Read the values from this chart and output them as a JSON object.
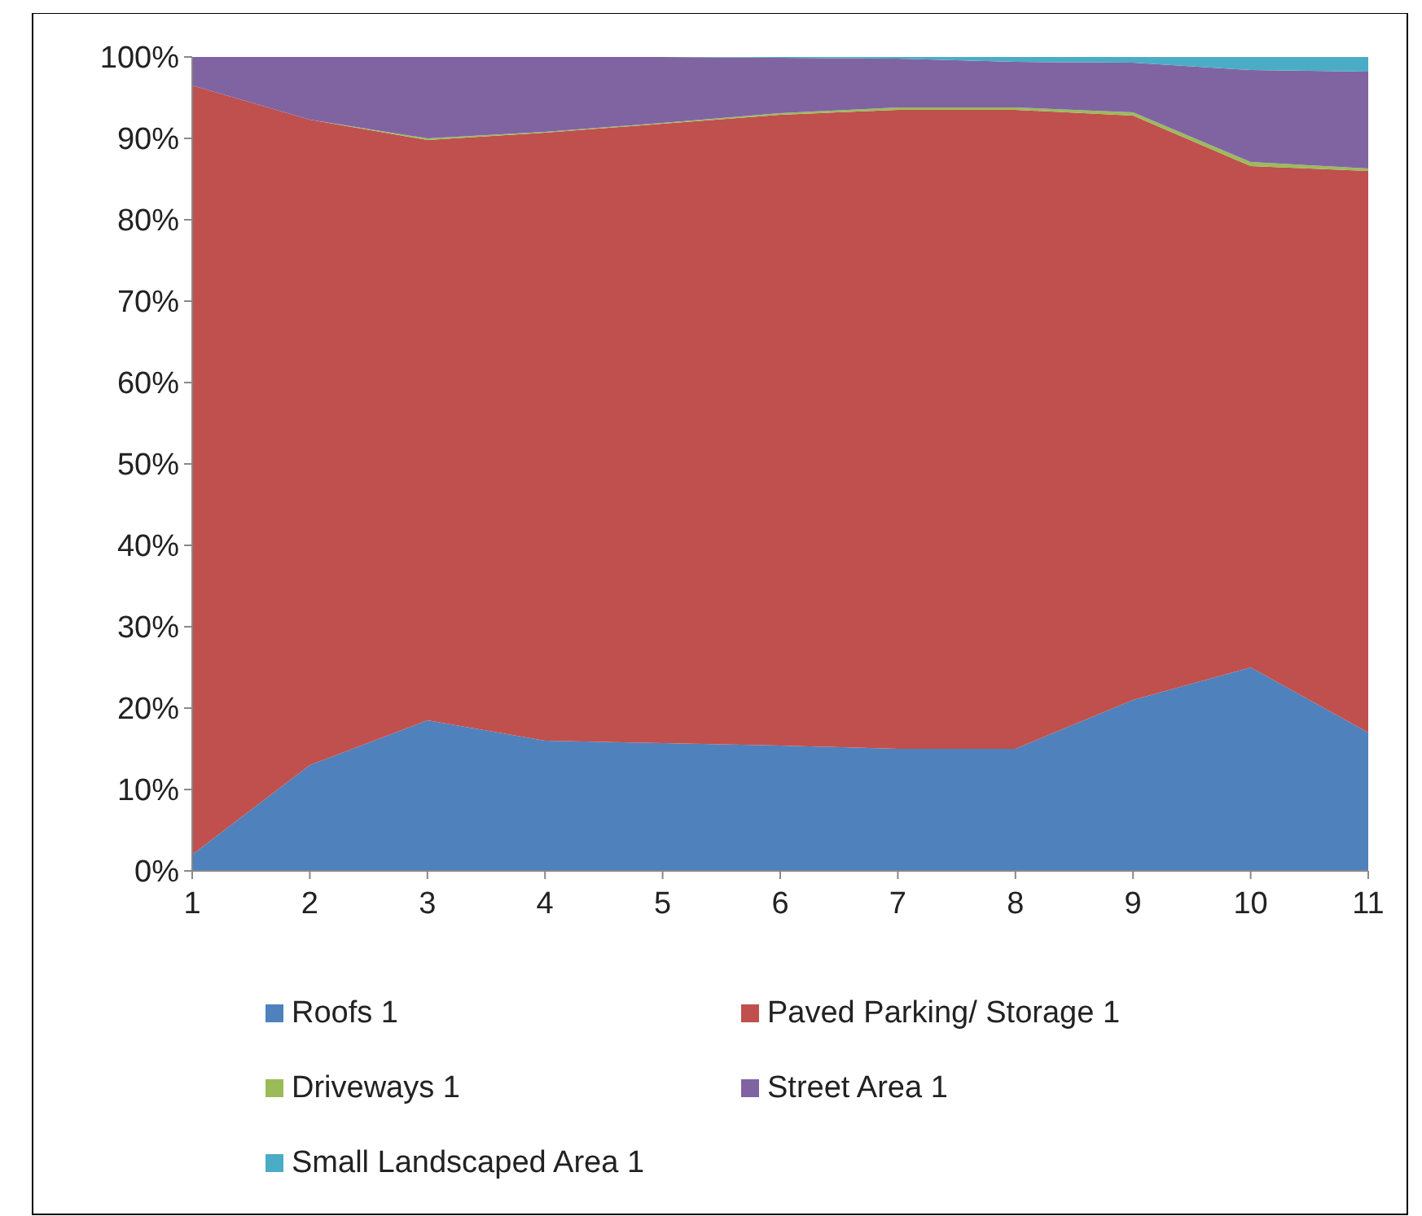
{
  "chart_data": {
    "type": "area",
    "stacked": true,
    "x": [
      1,
      2,
      3,
      4,
      5,
      6,
      7,
      8,
      9,
      10,
      11
    ],
    "xlim": [
      1,
      11
    ],
    "xticks": [
      1,
      2,
      3,
      4,
      5,
      6,
      7,
      8,
      9,
      10,
      11
    ],
    "ylim": [
      0,
      100
    ],
    "yticks": [
      {
        "value": 0,
        "label": "0%"
      },
      {
        "value": 10,
        "label": "10%"
      },
      {
        "value": 20,
        "label": "20%"
      },
      {
        "value": 30,
        "label": "30%"
      },
      {
        "value": 40,
        "label": "40%"
      },
      {
        "value": 50,
        "label": "50%"
      },
      {
        "value": 60,
        "label": "60%"
      },
      {
        "value": 70,
        "label": "70%"
      },
      {
        "value": 80,
        "label": "80%"
      },
      {
        "value": 90,
        "label": "90%"
      },
      {
        "value": 100,
        "label": "100%"
      }
    ],
    "legend": "bottom",
    "series": [
      {
        "name": "Roofs 1",
        "color": "#4f81bd",
        "values": [
          2,
          13,
          18.5,
          16,
          15.7,
          15.4,
          15,
          15,
          21,
          25,
          17
        ]
      },
      {
        "name": "Paved Parking/ Storage 1",
        "color": "#c0504d",
        "values": [
          94.5,
          79.3,
          71.3,
          74.7,
          76.1,
          77.5,
          78.5,
          78.5,
          71.8,
          61.6,
          69
        ]
      },
      {
        "name": "Driveways 1",
        "color": "#9bbb59",
        "values": [
          0,
          0,
          0.2,
          0.1,
          0.1,
          0.2,
          0.3,
          0.3,
          0.4,
          0.5,
          0.3
        ]
      },
      {
        "name": "Street Area 1",
        "color": "#8064a2",
        "values": [
          3.5,
          7.7,
          10,
          9.2,
          8.1,
          6.8,
          6,
          5.6,
          6.1,
          11.3,
          11.9
        ]
      },
      {
        "name": "Small Landscaped Area 1",
        "color": "#4bacc6",
        "values": [
          0,
          0,
          0,
          0,
          0,
          0.1,
          0.2,
          0.6,
          0.7,
          1.6,
          1.8
        ]
      }
    ]
  }
}
